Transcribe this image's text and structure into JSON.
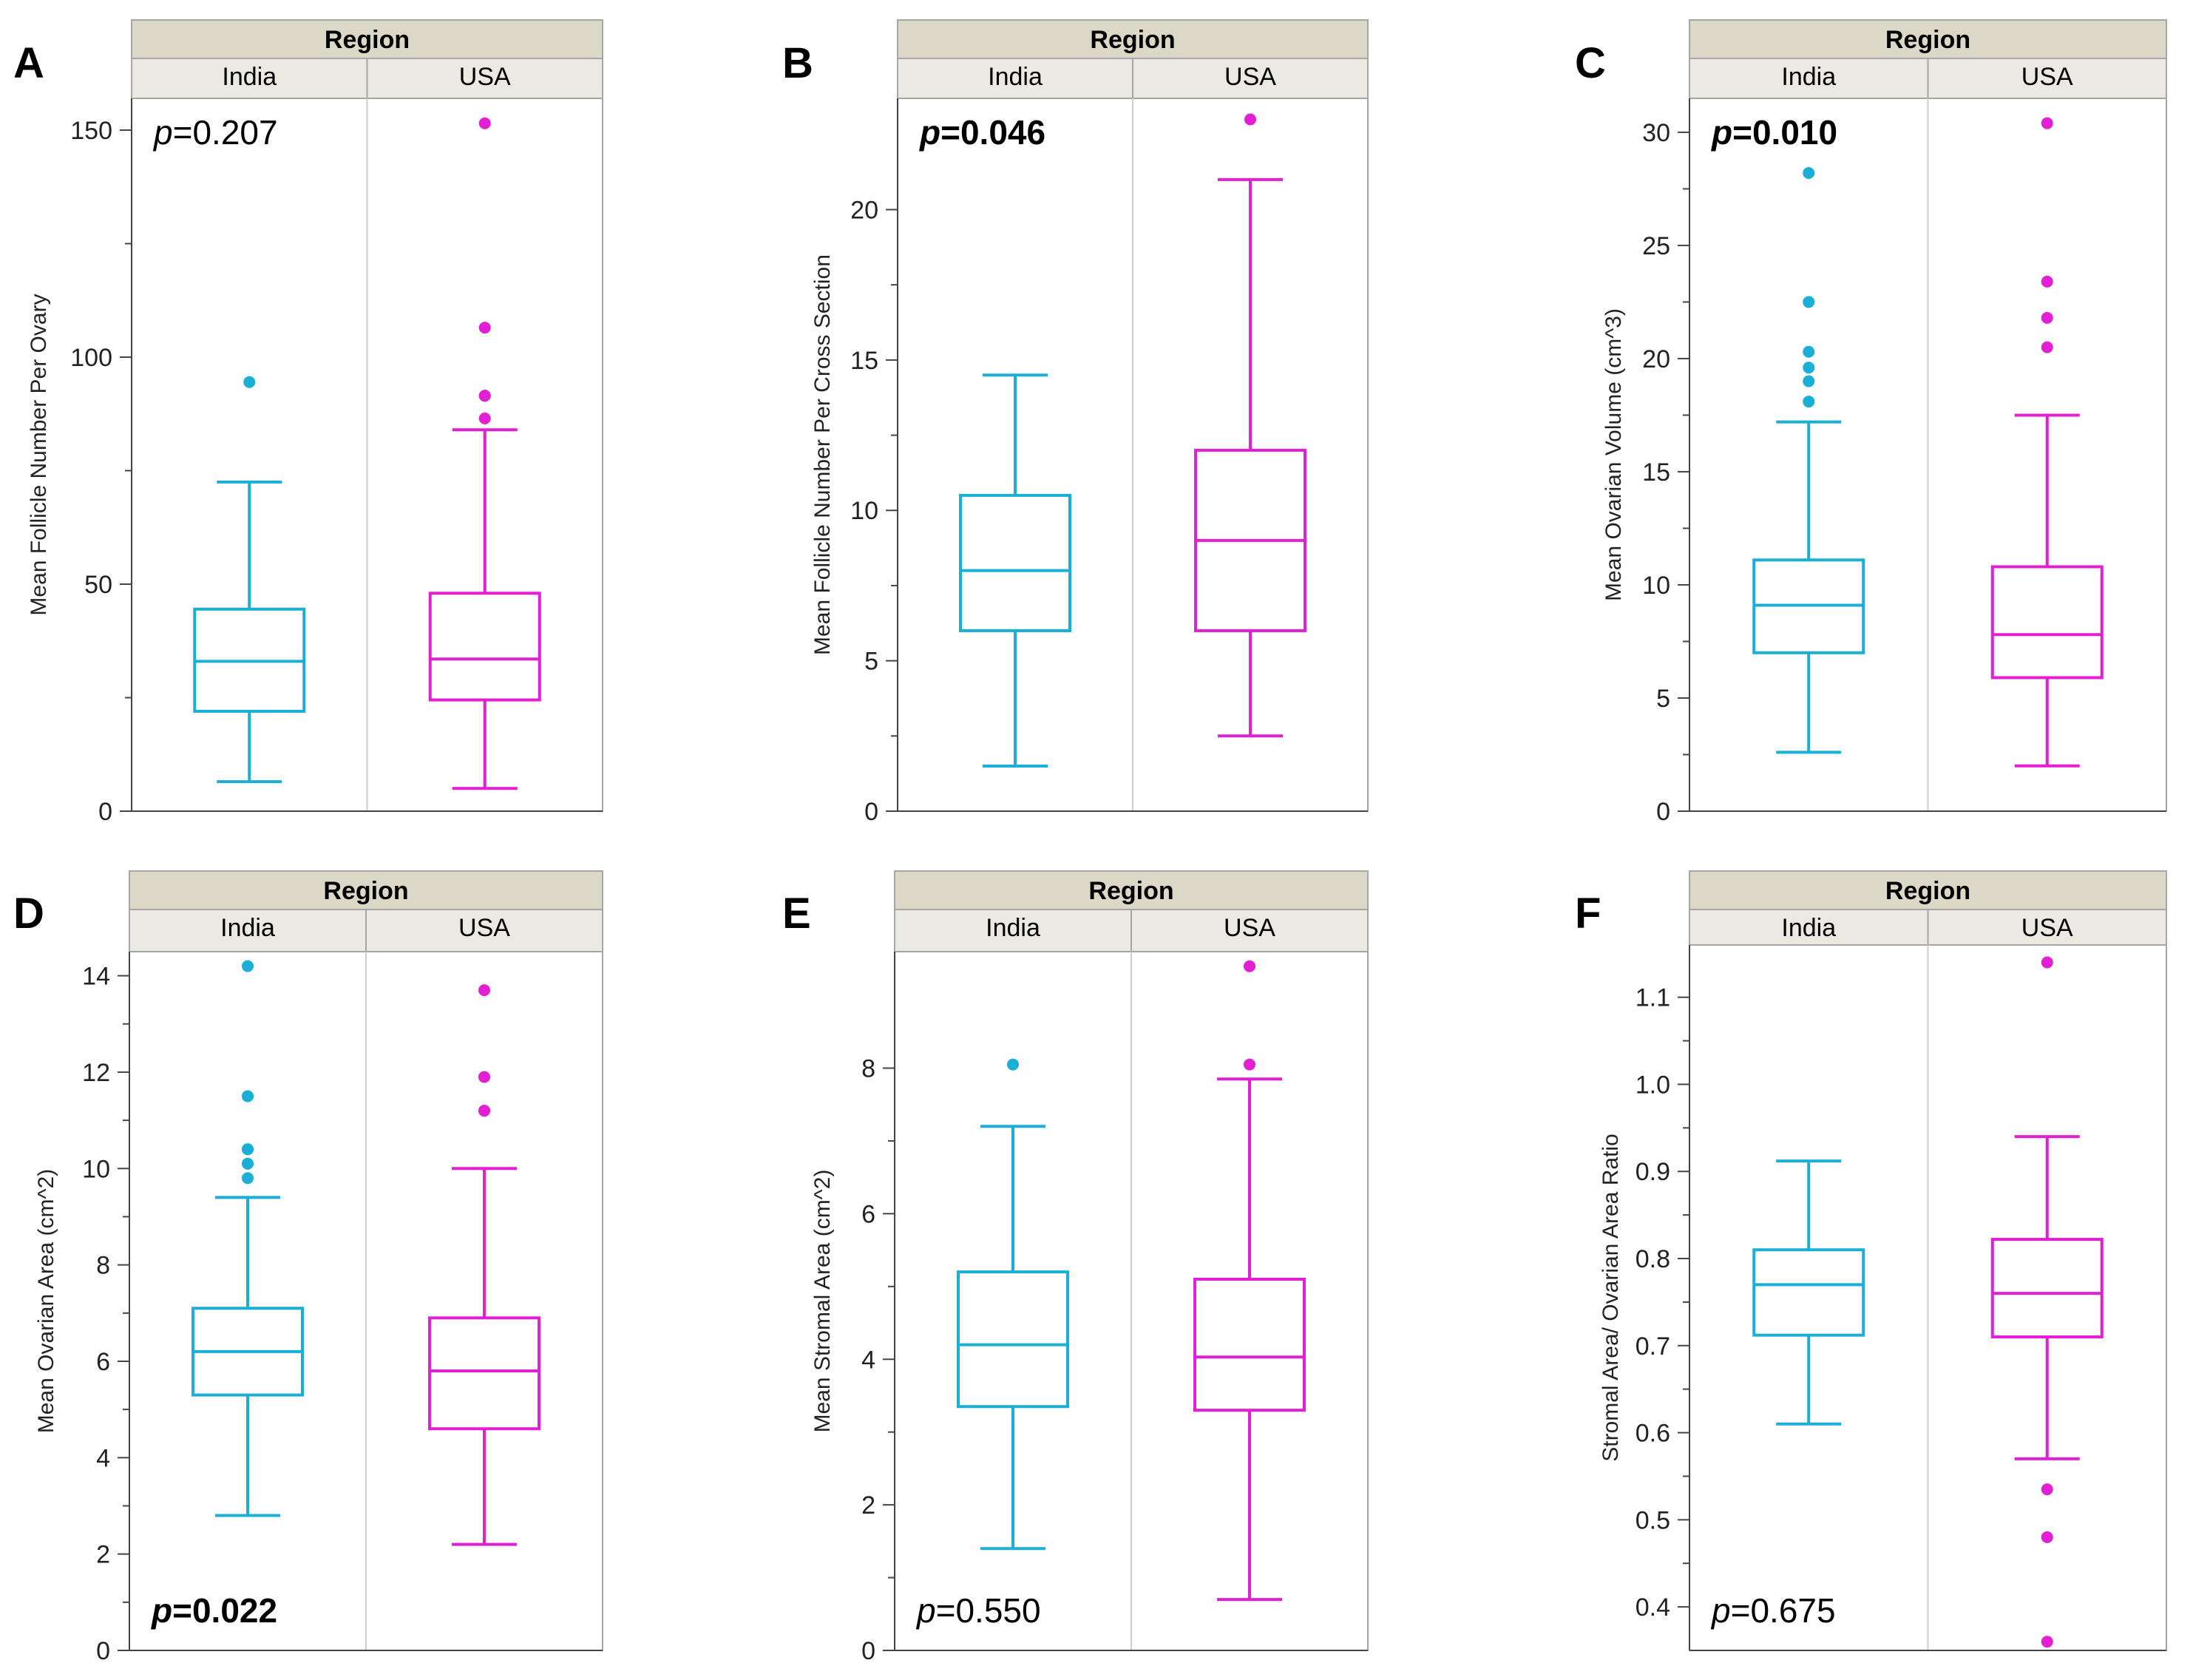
{
  "colors": {
    "india": "#1BAFD6",
    "usa": "#E21FD3",
    "header_bg": "#DCD8C8",
    "subheader_bg": "#ECEAE0",
    "frame": "#A6A6A6",
    "divider": "#CFCFCF"
  },
  "chart_data": [
    {
      "type": "box",
      "panel_letter": "A",
      "header": "Region",
      "categories": [
        "India",
        "USA"
      ],
      "ylabel": "Mean Follicle Number Per Ovary",
      "ylim": [
        0,
        157
      ],
      "yticks": [
        0,
        50,
        100,
        150
      ],
      "p_prefix": "p",
      "p_value": "=0.207",
      "p_bold": false,
      "p_position": "top",
      "series": [
        {
          "name": "India",
          "whisker_low": 6.5,
          "q1": 22,
          "median": 33,
          "q3": 44.5,
          "whisker_high": 72.5,
          "outliers": [
            94.5
          ]
        },
        {
          "name": "USA",
          "whisker_low": 5,
          "q1": 24.5,
          "median": 33.5,
          "q3": 48,
          "whisker_high": 84,
          "outliers": [
            86.5,
            91.5,
            91.5,
            106.5,
            151.5
          ]
        }
      ]
    },
    {
      "type": "box",
      "panel_letter": "B",
      "header": "Region",
      "categories": [
        "India",
        "USA"
      ],
      "ylabel": "Mean Follicle Number Per Cross Section",
      "ylim": [
        0,
        23.7
      ],
      "yticks": [
        0,
        5,
        10,
        15,
        20
      ],
      "p_prefix": "p",
      "p_value": "=0.046",
      "p_bold": true,
      "p_position": "top",
      "series": [
        {
          "name": "India",
          "whisker_low": 1.5,
          "q1": 6,
          "median": 8,
          "q3": 10.5,
          "whisker_high": 14.5,
          "outliers": []
        },
        {
          "name": "USA",
          "whisker_low": 2.5,
          "q1": 6,
          "median": 9,
          "q3": 12,
          "whisker_high": 21,
          "outliers": [
            23
          ]
        }
      ]
    },
    {
      "type": "box",
      "panel_letter": "C",
      "header": "Region",
      "categories": [
        "India",
        "USA"
      ],
      "ylabel": "Mean Ovarian Volume (cm^3)",
      "ylim": [
        0,
        31.5
      ],
      "yticks": [
        0,
        5,
        10,
        15,
        20,
        25,
        30
      ],
      "p_prefix": "p",
      "p_value": "=0.010",
      "p_bold": true,
      "p_position": "top",
      "series": [
        {
          "name": "India",
          "whisker_low": 2.6,
          "q1": 7,
          "median": 9.1,
          "q3": 11.1,
          "whisker_high": 17.2,
          "outliers": [
            18.1,
            19,
            19.6,
            20.3,
            22.5,
            28.2
          ]
        },
        {
          "name": "USA",
          "whisker_low": 2,
          "q1": 5.9,
          "median": 7.8,
          "q3": 10.8,
          "whisker_high": 17.5,
          "outliers": [
            20.5,
            21.8,
            23.4,
            30.4
          ]
        }
      ]
    },
    {
      "type": "box",
      "panel_letter": "D",
      "header": "Region",
      "categories": [
        "India",
        "USA"
      ],
      "ylabel": "Mean Ovarian Area (cm^2)",
      "ylim": [
        0,
        14.5
      ],
      "yticks": [
        0,
        2,
        4,
        6,
        8,
        10,
        12,
        14
      ],
      "p_prefix": "p",
      "p_value": "=0.022",
      "p_bold": true,
      "p_position": "bottom",
      "series": [
        {
          "name": "India",
          "whisker_low": 2.8,
          "q1": 5.3,
          "median": 6.2,
          "q3": 7.1,
          "whisker_high": 9.4,
          "outliers": [
            9.8,
            10.1,
            10.1,
            10.4,
            10.4,
            11.5,
            11.5,
            14.2
          ]
        },
        {
          "name": "USA",
          "whisker_low": 2.2,
          "q1": 4.6,
          "median": 5.8,
          "q3": 6.9,
          "whisker_high": 10,
          "outliers": [
            11.2,
            11.2,
            11.9,
            13.7
          ]
        }
      ]
    },
    {
      "type": "box",
      "panel_letter": "E",
      "header": "Region",
      "categories": [
        "India",
        "USA"
      ],
      "ylabel": "Mean Stromal Area (cm^2)",
      "ylim": [
        0,
        9.6
      ],
      "yticks": [
        0,
        2,
        4,
        6,
        8
      ],
      "p_prefix": "p",
      "p_value": "=0.550",
      "p_bold": false,
      "p_position": "bottom",
      "series": [
        {
          "name": "India",
          "whisker_low": 1.4,
          "q1": 3.35,
          "median": 4.2,
          "q3": 5.2,
          "whisker_high": 7.2,
          "outliers": [
            8.05
          ]
        },
        {
          "name": "USA",
          "whisker_low": 0.7,
          "q1": 3.3,
          "median": 4.03,
          "q3": 5.1,
          "whisker_high": 7.85,
          "outliers": [
            8.05,
            9.4
          ]
        }
      ]
    },
    {
      "type": "box",
      "panel_letter": "F",
      "header": "Region",
      "categories": [
        "India",
        "USA"
      ],
      "ylabel": "Stromal Area/ Ovarian Area Ratio",
      "ylim": [
        0.35,
        1.16
      ],
      "yticks": [
        0.4,
        0.5,
        0.6,
        0.7,
        0.8,
        0.9,
        1.0,
        1.1
      ],
      "tick_format": "fixed1",
      "p_prefix": "p",
      "p_value": "=0.675",
      "p_bold": false,
      "p_position": "bottom",
      "series": [
        {
          "name": "India",
          "whisker_low": 0.61,
          "q1": 0.712,
          "median": 0.77,
          "q3": 0.81,
          "whisker_high": 0.912,
          "outliers": []
        },
        {
          "name": "USA",
          "whisker_low": 0.57,
          "q1": 0.71,
          "median": 0.76,
          "q3": 0.822,
          "whisker_high": 0.94,
          "outliers": [
            0.36,
            0.48,
            0.535,
            1.14
          ]
        }
      ]
    }
  ]
}
